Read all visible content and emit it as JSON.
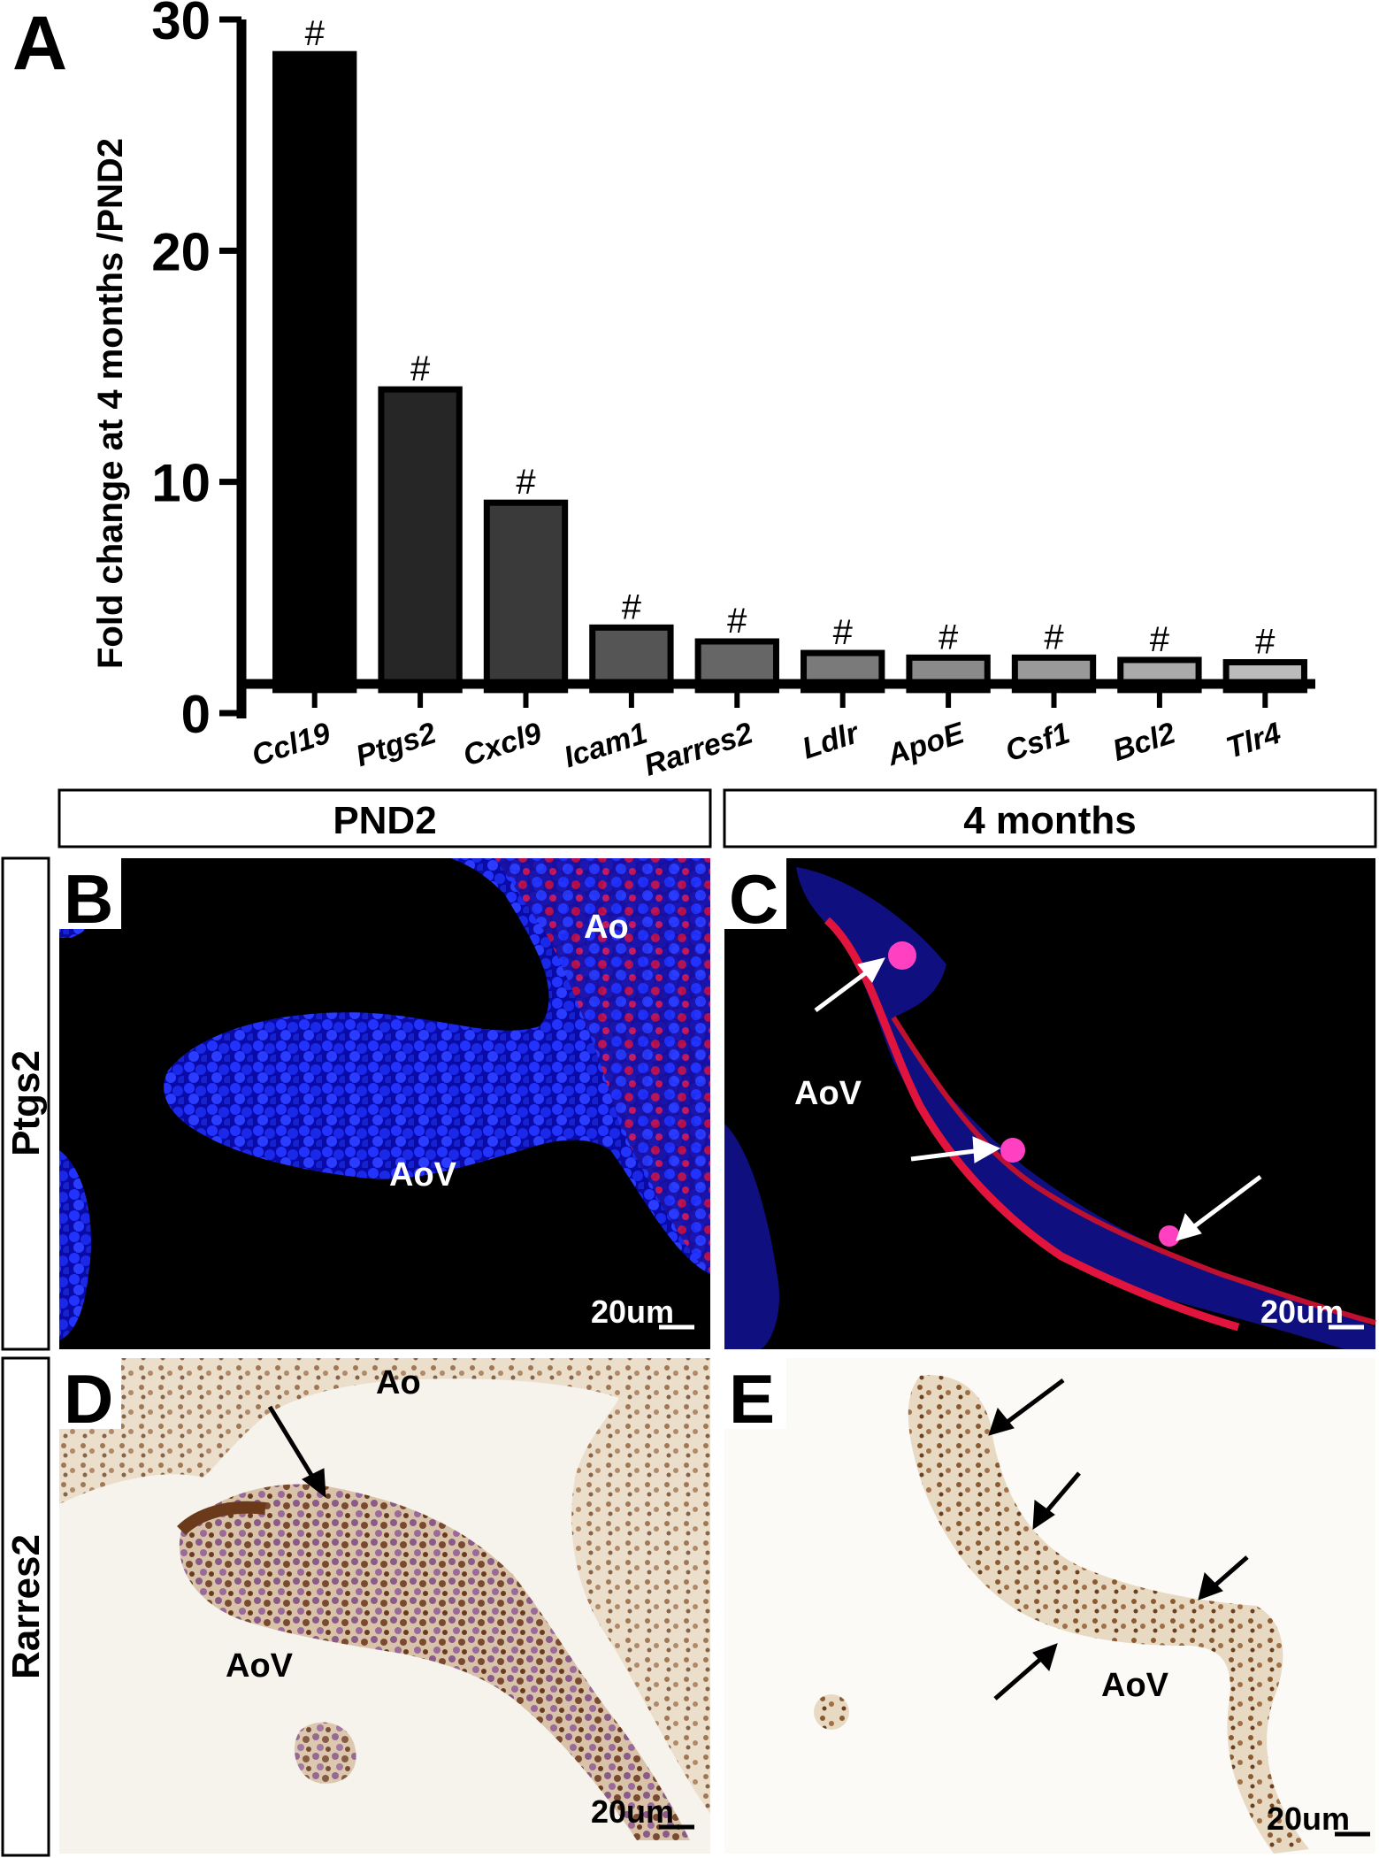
{
  "chart_data": {
    "type": "bar",
    "categories": [
      "Ccl19",
      "Ptgs2",
      "Cxcl9",
      "Icam1",
      "Rarres2",
      "Ldlr",
      "ApoE",
      "Csf1",
      "Bcl2",
      "Tlr4"
    ],
    "values": [
      28.5,
      14.0,
      9.1,
      3.7,
      3.1,
      2.6,
      2.4,
      2.4,
      2.3,
      2.2
    ],
    "bar_colors": [
      "#000000",
      "#262626",
      "#3a3a3a",
      "#555555",
      "#666666",
      "#7a7a7a",
      "#8a8a8a",
      "#999999",
      "#aaaaaa",
      "#bbbbbb"
    ],
    "annotations": [
      "#",
      "#",
      "#",
      "#",
      "#",
      "#",
      "#",
      "#",
      "#",
      "#"
    ],
    "ylabel": "Fold change at 4 months /PND2",
    "xlabel": "",
    "ylim": [
      0,
      30
    ],
    "yticks": [
      0,
      10,
      20,
      30
    ],
    "baseline": 1,
    "grid": false
  },
  "panels": {
    "A": "A",
    "B": "B",
    "C": "C",
    "D": "D",
    "E": "E"
  },
  "column_headers": {
    "left": "PND2",
    "right": "4 months"
  },
  "row_labels": {
    "top": "Ptgs2",
    "bottom": "Rarres2"
  },
  "micrographs": {
    "B": {
      "labels": [
        "Ao",
        "AoV"
      ],
      "scale_bar": "20um"
    },
    "C": {
      "labels": [
        "AoV"
      ],
      "scale_bar": "20um"
    },
    "D": {
      "labels": [
        "Ao",
        "AoV"
      ],
      "scale_bar": "20um"
    },
    "E": {
      "labels": [
        "AoV"
      ],
      "scale_bar": "20um"
    }
  }
}
